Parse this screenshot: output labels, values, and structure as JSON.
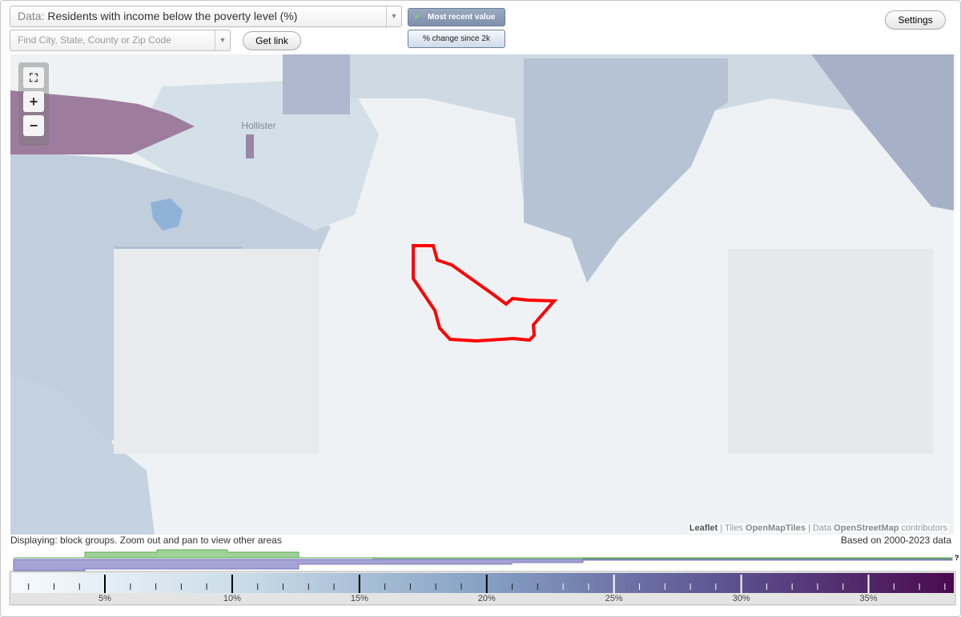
{
  "toolbar": {
    "data_label": "Data:",
    "data_value": "Residents with income below the poverty level (%)",
    "search_placeholder": "Find City, State, County or Zip Code",
    "get_link": "Get link",
    "mode_options": [
      "Most recent value",
      "% change since 2k"
    ],
    "settings": "Settings"
  },
  "map": {
    "place_labels": [
      "Hollister"
    ],
    "attribution": [
      "Leaflet",
      "|",
      "Tiles",
      "OpenMapTiles",
      "| Data",
      "OpenStreetMap",
      "contributors"
    ]
  },
  "status": {
    "displaying": "Displaying: block groups. Zoom out and pan to view other areas",
    "based_on": "Based on 2000-2023 data"
  },
  "legend": {
    "help": "?",
    "range": [
      1.35,
      38.35
    ],
    "ticks": [
      {
        "value": 5,
        "label": "5%"
      },
      {
        "value": 10,
        "label": "10%"
      },
      {
        "value": 15,
        "label": "15%"
      },
      {
        "value": 20,
        "label": "20%"
      },
      {
        "value": 25,
        "label": "25%"
      },
      {
        "value": 30,
        "label": "30%"
      },
      {
        "value": 35,
        "label": "35%"
      }
    ],
    "minor_ticks": [
      2,
      3,
      4,
      6,
      7,
      8,
      9,
      11,
      12,
      13,
      14,
      16,
      17,
      18,
      19,
      21,
      22,
      23,
      24,
      26,
      27,
      28,
      29,
      31,
      32,
      33,
      34,
      36,
      37,
      38
    ],
    "light_tick_from": 23
  }
}
